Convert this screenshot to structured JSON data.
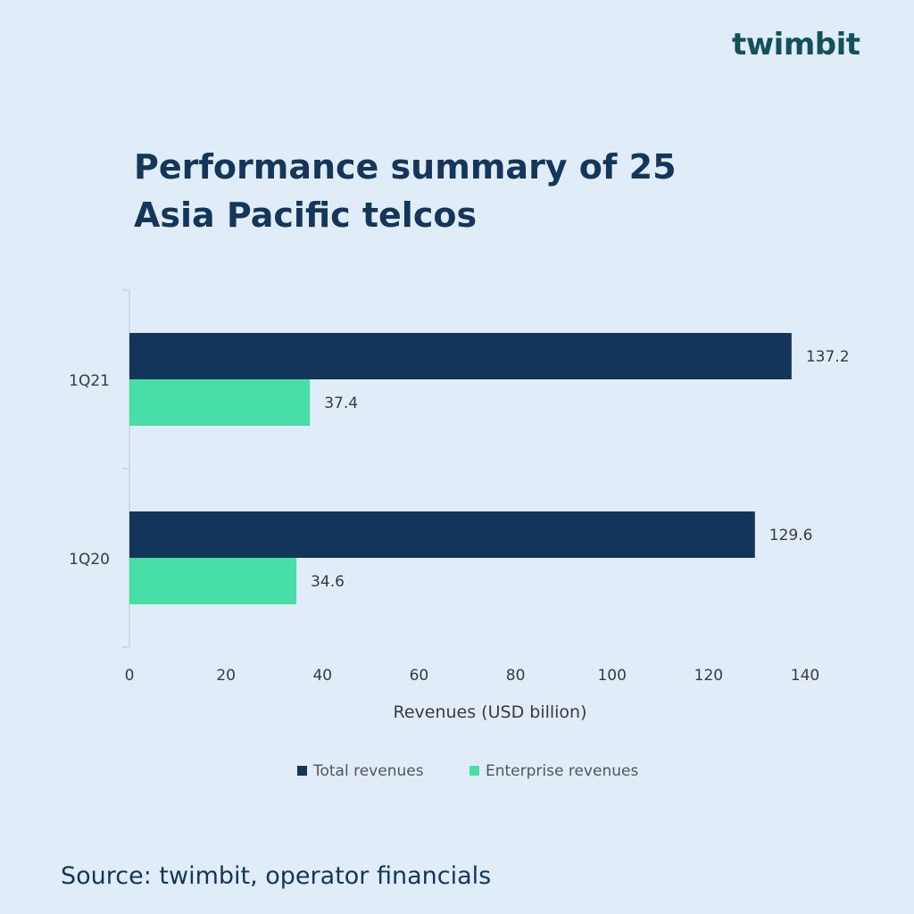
{
  "brand": {
    "logo_text": "twimbit"
  },
  "title": "Performance summary of 25 Asia Pacific telcos",
  "source": "Source: twimbit, operator financials",
  "colors": {
    "total": "#14355a",
    "enterprise": "#47dfa6",
    "text": "#14365a",
    "logo": "#12505a",
    "logo_dot": "#e55a5a"
  },
  "chart_data": {
    "type": "bar",
    "orientation": "horizontal",
    "categories": [
      "1Q21",
      "1Q20"
    ],
    "series": [
      {
        "name": "Total revenues",
        "values": [
          137.2,
          129.6
        ],
        "labels": [
          "137.2",
          "129.6"
        ]
      },
      {
        "name": "Enterprise revenues",
        "values": [
          37.4,
          34.6
        ],
        "labels": [
          "37.4",
          "34.6"
        ]
      }
    ],
    "xlabel": "Revenues (USD billion)",
    "ylabel": "",
    "xlim": [
      0,
      140
    ],
    "xticks": [
      "0",
      "20",
      "40",
      "60",
      "80",
      "100",
      "120",
      "140"
    ],
    "grid": false,
    "legend": "bottom"
  }
}
